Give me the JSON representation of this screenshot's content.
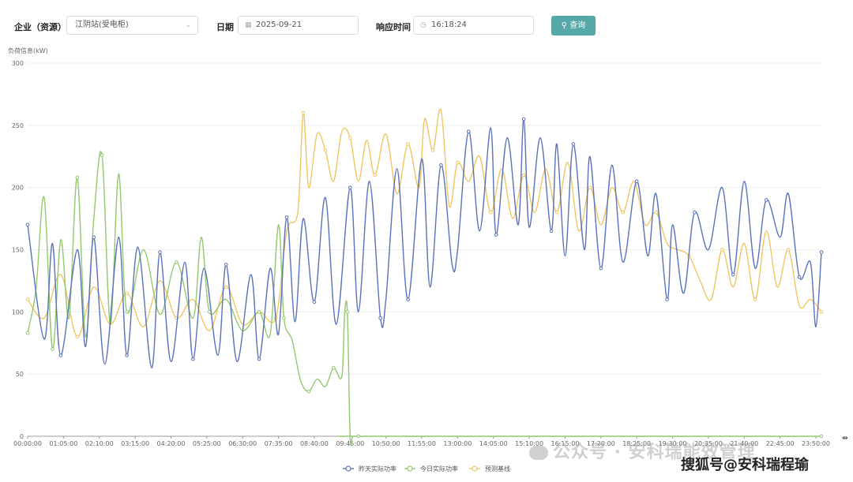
{
  "filters": {
    "enterprise_label": "企业（资源）",
    "enterprise_value": "江阴站(受电柜)",
    "date_label": "日期",
    "date_value": "2025-09-21",
    "time_label": "响应时间",
    "time_value": "16:18:24",
    "query_button": "查询"
  },
  "icons": {
    "dropdown": "chevron-down-icon",
    "calendar": "calendar-icon",
    "clock": "clock-icon",
    "search": "search-icon"
  },
  "watermarks": {
    "faded": "公众号 · 安科瑞能效管理",
    "bold": "搜狐号@安科瑞程瑜"
  },
  "colors": {
    "yesterday": "#5b73b8",
    "today": "#93c96f",
    "baseline": "#efc766",
    "button": "#54a8a8"
  },
  "chart_data": {
    "type": "line",
    "ylabel": "负荷信息(kW)",
    "ylim": [
      0,
      300
    ],
    "yticks": [
      0,
      50,
      100,
      150,
      200,
      250,
      300
    ],
    "xlim": [
      "00:00:00",
      "24:00:00"
    ],
    "x_tick_labels": [
      "00:00:00",
      "01:05:00",
      "02:10:00",
      "03:15:00",
      "04:20:00",
      "05:25:00",
      "06:30:00",
      "07:35:00",
      "08:40:00",
      "09:45:00",
      "10:50:00",
      "11:55:00",
      "13:00:00",
      "14:05:00",
      "15:10:00",
      "16:15:00",
      "17:20:00",
      "18:25:00",
      "19:30:00",
      "20:35:00",
      "21:40:00",
      "22:45:00",
      "23:50:00"
    ],
    "grid": true,
    "legend_position": "bottom-center",
    "series": [
      {
        "name": "昨天实际功率",
        "color": "#5b73b8",
        "x": [
          "00:00",
          "00:30",
          "00:45",
          "01:00",
          "01:30",
          "01:45",
          "02:00",
          "02:20",
          "02:45",
          "03:00",
          "03:20",
          "03:45",
          "04:00",
          "04:20",
          "04:45",
          "05:00",
          "05:20",
          "05:45",
          "06:00",
          "06:20",
          "06:45",
          "07:00",
          "07:20",
          "07:35",
          "07:50",
          "08:05",
          "08:20",
          "08:40",
          "09:00",
          "09:20",
          "09:45",
          "10:00",
          "10:20",
          "10:40",
          "10:50",
          "11:10",
          "11:30",
          "11:55",
          "12:10",
          "12:30",
          "12:50",
          "13:00",
          "13:20",
          "13:40",
          "14:00",
          "14:10",
          "14:30",
          "14:50",
          "15:00",
          "15:10",
          "15:30",
          "15:50",
          "16:00",
          "16:15",
          "16:30",
          "16:50",
          "17:00",
          "17:20",
          "17:40",
          "18:00",
          "18:25",
          "18:45",
          "19:00",
          "19:20",
          "19:30",
          "19:50",
          "20:10",
          "20:35",
          "21:00",
          "21:20",
          "21:40",
          "22:00",
          "22:20",
          "22:45",
          "23:00",
          "23:20",
          "23:40",
          "23:50",
          "24:00"
        ],
        "y": [
          170,
          78,
          155,
          65,
          150,
          72,
          160,
          58,
          160,
          65,
          152,
          55,
          148,
          60,
          140,
          62,
          135,
          65,
          138,
          60,
          130,
          62,
          135,
          82,
          176,
          92,
          175,
          108,
          192,
          90,
          200,
          100,
          205,
          95,
          110,
          215,
          110,
          223,
          120,
          218,
          138,
          150,
          245,
          165,
          248,
          162,
          240,
          170,
          255,
          168,
          240,
          165,
          235,
          145,
          235,
          150,
          225,
          135,
          218,
          140,
          205,
          145,
          195,
          110,
          170,
          115,
          180,
          150,
          200,
          130,
          205,
          135,
          190,
          160,
          195,
          128,
          140,
          88,
          148
        ]
      },
      {
        "name": "今日实际功率",
        "color": "#93c96f",
        "x": [
          "00:00",
          "00:15",
          "00:30",
          "00:45",
          "01:00",
          "01:15",
          "01:30",
          "01:45",
          "02:00",
          "02:15",
          "02:30",
          "02:45",
          "03:00",
          "03:30",
          "04:00",
          "04:30",
          "05:00",
          "05:15",
          "05:30",
          "06:00",
          "06:30",
          "07:00",
          "07:20",
          "07:35",
          "07:45",
          "08:00",
          "08:15",
          "08:30",
          "08:45",
          "09:00",
          "09:15",
          "09:30",
          "09:35",
          "09:40",
          "09:45",
          "09:50",
          "10:00",
          "10:10",
          "10:30",
          "24:00"
        ],
        "y": [
          83,
          118,
          192,
          70,
          158,
          95,
          208,
          80,
          175,
          226,
          90,
          211,
          100,
          150,
          98,
          140,
          95,
          160,
          100,
          110,
          85,
          100,
          82,
          170,
          95,
          77,
          45,
          36,
          46,
          40,
          55,
          48,
          98,
          100,
          0,
          0,
          0,
          0,
          0,
          0
        ]
      },
      {
        "name": "预测基线",
        "color": "#efc766",
        "x": [
          "00:00",
          "00:30",
          "01:00",
          "01:30",
          "02:00",
          "02:30",
          "03:00",
          "03:30",
          "04:00",
          "04:30",
          "05:00",
          "05:30",
          "06:00",
          "06:30",
          "07:00",
          "07:30",
          "07:50",
          "08:10",
          "08:20",
          "08:30",
          "08:45",
          "09:00",
          "09:15",
          "09:30",
          "09:45",
          "10:00",
          "10:15",
          "10:30",
          "10:50",
          "11:10",
          "11:30",
          "11:50",
          "12:00",
          "12:15",
          "12:30",
          "12:45",
          "13:00",
          "13:20",
          "13:40",
          "14:00",
          "14:20",
          "14:40",
          "15:00",
          "15:20",
          "15:40",
          "16:00",
          "16:20",
          "16:40",
          "17:00",
          "17:20",
          "17:40",
          "18:00",
          "18:20",
          "18:40",
          "19:00",
          "19:20",
          "19:40",
          "20:00",
          "20:20",
          "20:40",
          "21:00",
          "21:20",
          "21:40",
          "22:00",
          "22:20",
          "22:40",
          "23:00",
          "23:20",
          "23:40",
          "24:00"
        ],
        "y": [
          110,
          95,
          130,
          80,
          120,
          90,
          115,
          88,
          125,
          95,
          110,
          85,
          120,
          90,
          100,
          95,
          165,
          180,
          260,
          200,
          243,
          230,
          205,
          245,
          240,
          205,
          238,
          210,
          243,
          195,
          235,
          200,
          255,
          230,
          262,
          185,
          220,
          205,
          225,
          180,
          215,
          175,
          210,
          180,
          215,
          180,
          220,
          165,
          200,
          170,
          200,
          180,
          205,
          170,
          180,
          155,
          150,
          145,
          125,
          110,
          150,
          120,
          155,
          110,
          165,
          120,
          150,
          105,
          110,
          100
        ]
      }
    ]
  }
}
